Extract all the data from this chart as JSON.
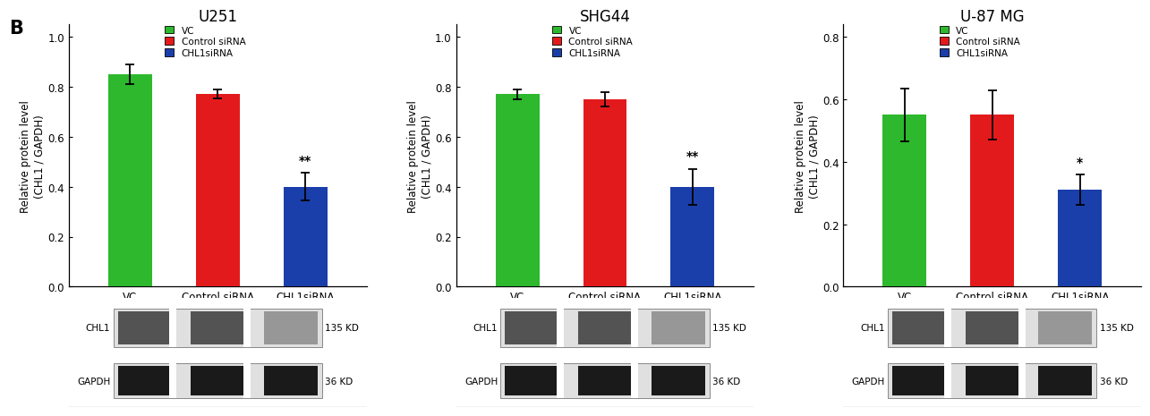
{
  "panels": [
    {
      "title": "U251",
      "ylim": [
        0.0,
        1.05
      ],
      "yticks": [
        0.0,
        0.2,
        0.4,
        0.6,
        0.8,
        1.0
      ],
      "yticklabels": [
        "0.0",
        "0.2",
        "0.4",
        "0.6",
        "0.8",
        "1.0"
      ],
      "values": [
        0.85,
        0.77,
        0.4
      ],
      "errors": [
        0.04,
        0.018,
        0.055
      ],
      "sig_labels": [
        "",
        "",
        "**"
      ]
    },
    {
      "title": "SHG44",
      "ylim": [
        0.0,
        1.05
      ],
      "yticks": [
        0.0,
        0.2,
        0.4,
        0.6,
        0.8,
        1.0
      ],
      "yticklabels": [
        "0.0",
        "0.2",
        "0.4",
        "0.6",
        "0.8",
        "1.0"
      ],
      "values": [
        0.77,
        0.75,
        0.4
      ],
      "errors": [
        0.02,
        0.03,
        0.072
      ],
      "sig_labels": [
        "",
        "",
        "**"
      ]
    },
    {
      "title": "U-87 MG",
      "ylim": [
        0.0,
        0.84
      ],
      "yticks": [
        0.0,
        0.2,
        0.4,
        0.6,
        0.8
      ],
      "yticklabels": [
        "0.0",
        "0.2",
        "0.4",
        "0.6",
        "0.8"
      ],
      "values": [
        0.55,
        0.55,
        0.31
      ],
      "errors": [
        0.085,
        0.08,
        0.048
      ],
      "sig_labels": [
        "",
        "",
        "*"
      ]
    }
  ],
  "categories": [
    "VC",
    "Control siRNA",
    "CHL1siRNA"
  ],
  "bar_colors": [
    "#2db82d",
    "#e31a1c",
    "#1a3faa"
  ],
  "ylabel": "Relative protein level\n(CHL1 / GAPDH)",
  "legend_labels": [
    "VC",
    "Control siRNA",
    "CHL1siRNA"
  ],
  "background_color": "#ffffff",
  "bar_width": 0.5,
  "capsize": 3.5,
  "error_color": "black",
  "error_linewidth": 1.3,
  "tick_fontsize": 8.5,
  "title_fontsize": 12,
  "ylabel_fontsize": 8.5,
  "legend_fontsize": 7.5,
  "sig_fontsize": 10,
  "blot_labels": [
    "CHL1",
    "GAPDH"
  ],
  "blot_kd": [
    "135 KD",
    "36 KD"
  ]
}
